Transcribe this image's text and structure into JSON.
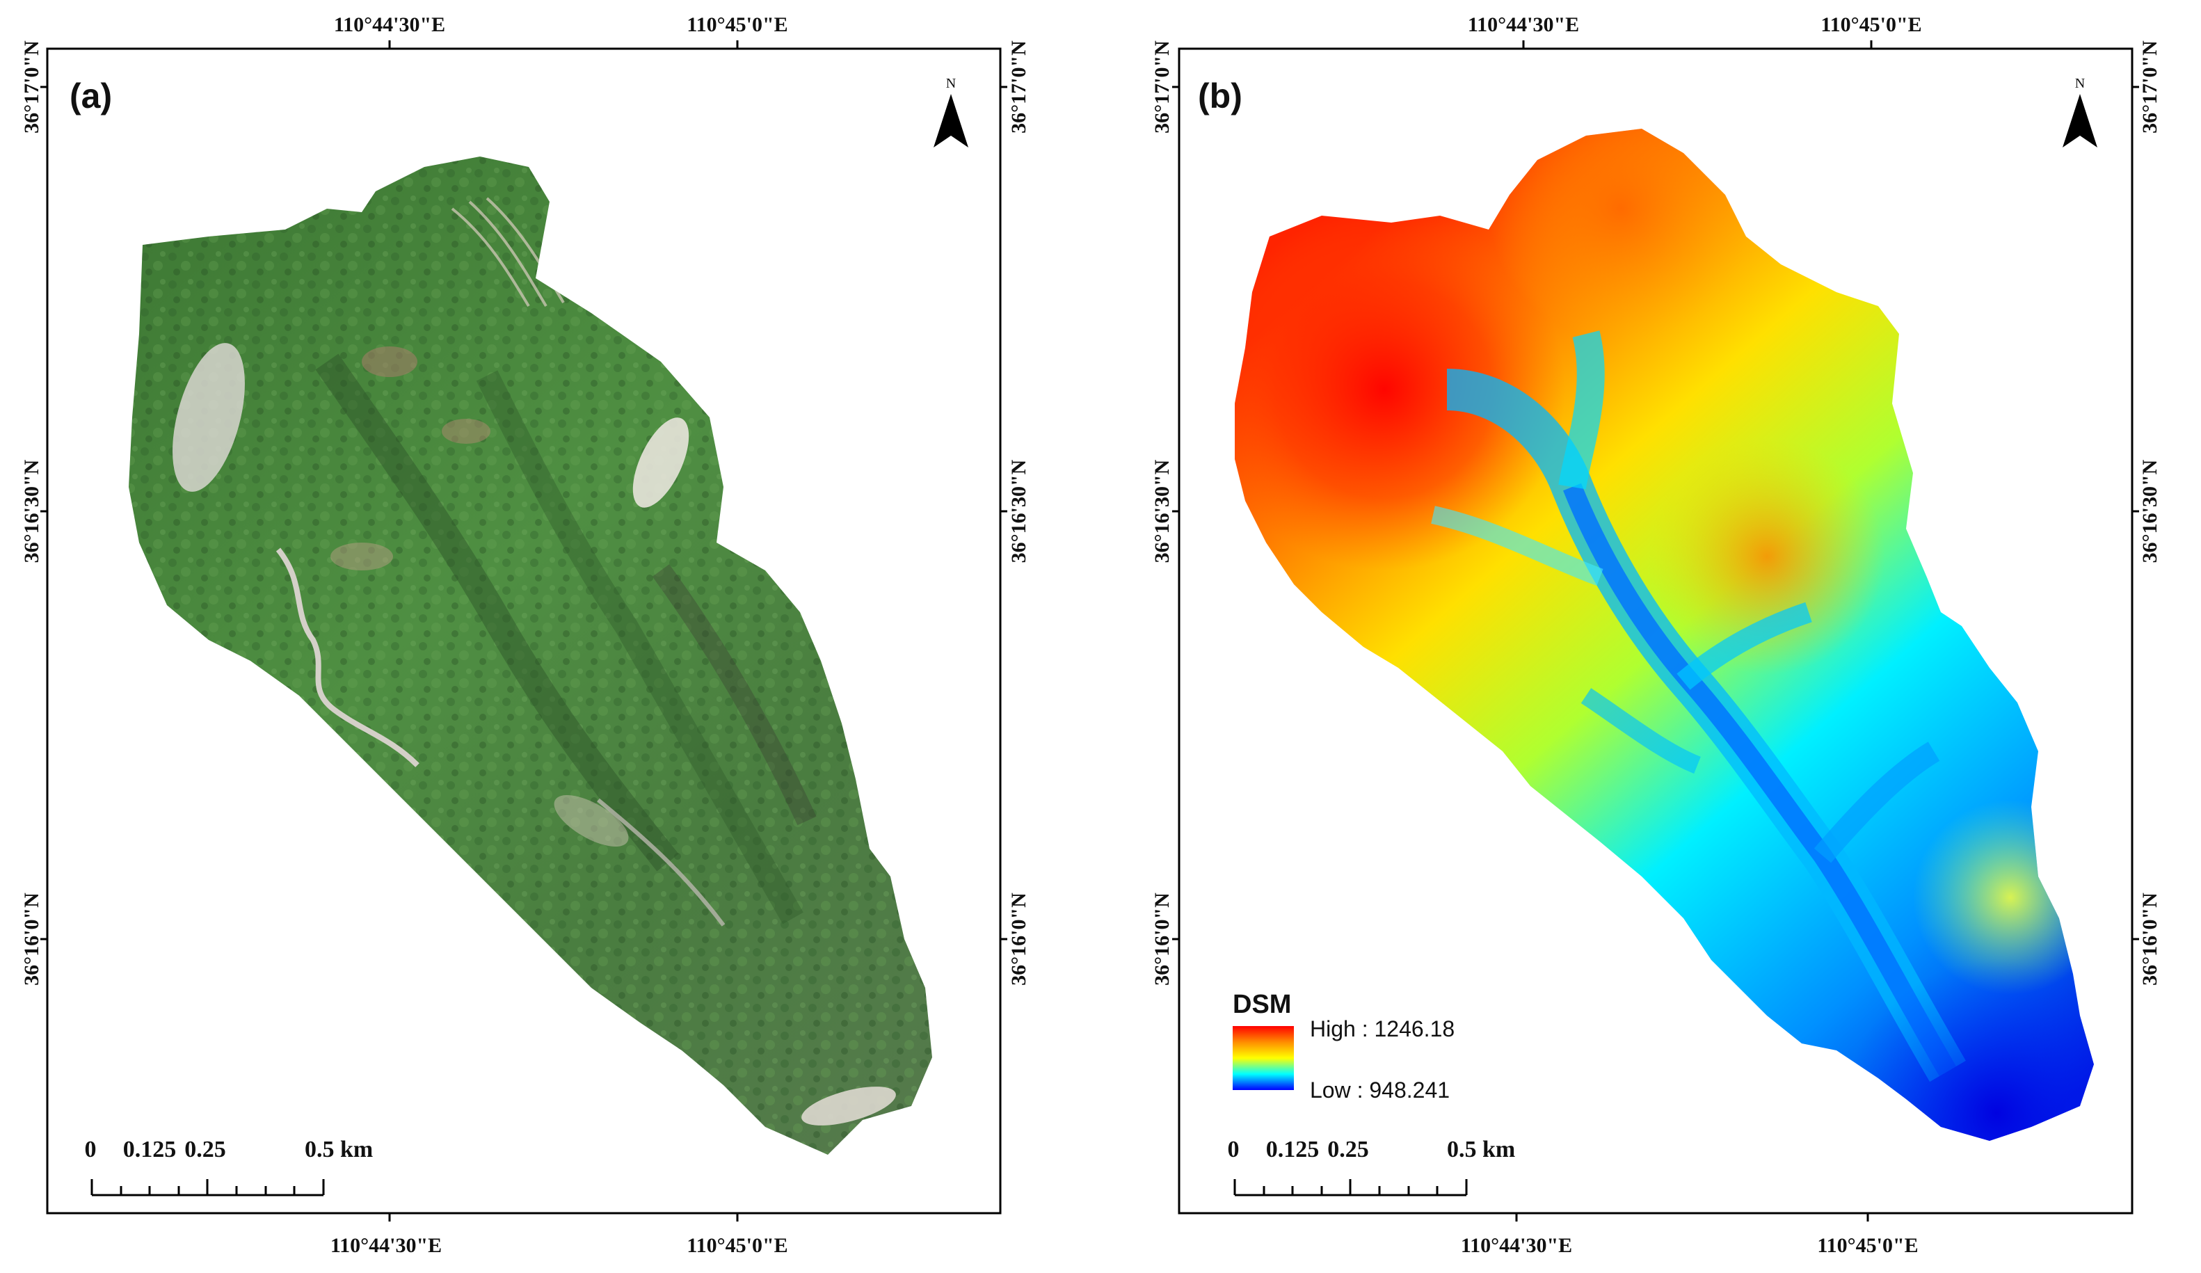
{
  "panels": [
    {
      "label": "(a)",
      "kind": "orthophoto",
      "lon_labels": [
        "110°44'30\"E",
        "110°45'0\"E"
      ],
      "lat_labels": [
        "36°17'0\"N",
        "36°16'30\"N",
        "36°16'0\"N"
      ],
      "north": "N",
      "scale_labels": [
        "0",
        "0.125",
        "0.25",
        "0.5 km"
      ]
    },
    {
      "label": "(b)",
      "kind": "dsm",
      "lon_labels": [
        "110°44'30\"E",
        "110°45'0\"E"
      ],
      "lat_labels": [
        "36°17'0\"N",
        "36°16'30\"N",
        "36°16'0\"N"
      ],
      "north": "N",
      "scale_labels": [
        "0",
        "0.125",
        "0.25",
        "0.5 km"
      ],
      "legend": {
        "title": "DSM",
        "high_label": "High : 1246.18",
        "low_label": "Low : 948.241",
        "high": 1246.18,
        "low": 948.241,
        "colors": [
          "#ff0000",
          "#ff8c00",
          "#ffff00",
          "#00ffff",
          "#0000ff"
        ]
      }
    }
  ],
  "colors": {
    "vegetation": "#4f8a3c",
    "frame": "#000000"
  }
}
